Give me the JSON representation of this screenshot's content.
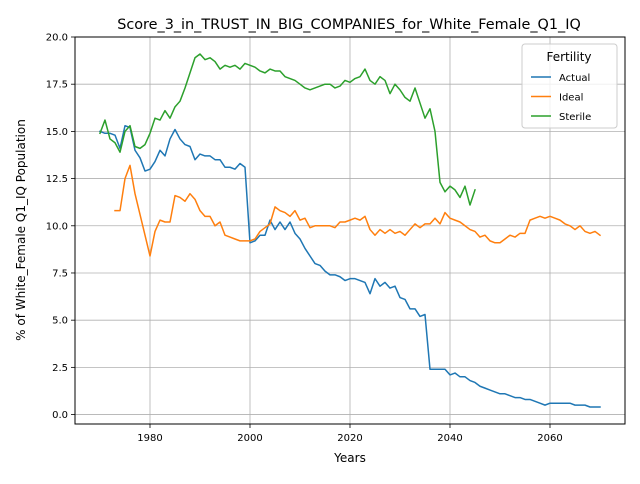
{
  "chart_data": {
    "type": "line",
    "title": "Score_3_in_TRUST_IN_BIG_COMPANIES_for_White_Female_Q1_IQ",
    "xlabel": "Years",
    "ylabel": "% of White_Female Q1_IQ Population",
    "xlim": [
      1965,
      2075
    ],
    "ylim": [
      -0.5,
      20.0
    ],
    "x_ticks": [
      1980,
      2000,
      2020,
      2040,
      2060
    ],
    "y_ticks": [
      0.0,
      2.5,
      5.0,
      7.5,
      10.0,
      12.5,
      15.0,
      17.5,
      20.0
    ],
    "x_tick_labels": [
      "1980",
      "2000",
      "2020",
      "2040",
      "2060"
    ],
    "y_tick_labels": [
      "0.0",
      "2.5",
      "5.0",
      "7.5",
      "10.0",
      "12.5",
      "15.0",
      "17.5",
      "20.0"
    ],
    "grid": true,
    "legend": {
      "title": "Fertility",
      "position": "top-right"
    },
    "series": [
      {
        "name": "Actual",
        "color": "#1f77b4",
        "x": [
          1970,
          1971,
          1972,
          1973,
          1974,
          1975,
          1976,
          1977,
          1978,
          1979,
          1980,
          1981,
          1982,
          1983,
          1984,
          1985,
          1986,
          1987,
          1988,
          1989,
          1990,
          1991,
          1992,
          1993,
          1994,
          1995,
          1996,
          1997,
          1998,
          1999,
          2000,
          2001,
          2002,
          2003,
          2004,
          2005,
          2006,
          2007,
          2008,
          2009,
          2010,
          2011,
          2012,
          2013,
          2014,
          2015,
          2016,
          2017,
          2018,
          2019,
          2020,
          2021,
          2022,
          2023,
          2024,
          2025,
          2026,
          2027,
          2028,
          2029,
          2030,
          2031,
          2032,
          2033,
          2034,
          2035,
          2036,
          2037,
          2038,
          2039,
          2040,
          2041,
          2042,
          2043,
          2044,
          2045,
          2046,
          2047,
          2048,
          2049,
          2050,
          2051,
          2052,
          2053,
          2054,
          2055,
          2056,
          2057,
          2058,
          2059,
          2060,
          2061,
          2062,
          2063,
          2064,
          2065,
          2066,
          2067,
          2068,
          2069,
          2070
        ],
        "values": [
          15.0,
          14.9,
          14.9,
          14.8,
          14.1,
          15.3,
          15.2,
          14.0,
          13.6,
          12.9,
          13.0,
          13.4,
          14.0,
          13.7,
          14.6,
          15.1,
          14.6,
          14.3,
          14.2,
          13.5,
          13.8,
          13.7,
          13.7,
          13.5,
          13.5,
          13.1,
          13.1,
          13.0,
          13.3,
          13.1,
          9.1,
          9.2,
          9.5,
          9.5,
          10.3,
          9.8,
          10.2,
          9.8,
          10.2,
          9.6,
          9.3,
          8.8,
          8.4,
          8.0,
          7.9,
          7.6,
          7.4,
          7.4,
          7.3,
          7.1,
          7.2,
          7.2,
          7.1,
          7.0,
          6.4,
          7.2,
          6.8,
          7.0,
          6.7,
          6.8,
          6.2,
          6.1,
          5.6,
          5.6,
          5.2,
          5.3,
          2.4,
          2.4,
          2.4,
          2.4,
          2.1,
          2.2,
          2.0,
          2.0,
          1.8,
          1.7,
          1.5,
          1.4,
          1.3,
          1.2,
          1.1,
          1.1,
          1.0,
          0.9,
          0.9,
          0.8,
          0.8,
          0.7,
          0.6,
          0.5,
          0.6,
          0.6,
          0.6,
          0.6,
          0.6,
          0.5,
          0.5,
          0.5,
          0.4,
          0.4,
          0.4
        ]
      },
      {
        "name": "Ideal",
        "color": "#ff7f0e",
        "x": [
          1973,
          1974,
          1975,
          1976,
          1977,
          1978,
          1979,
          1980,
          1981,
          1982,
          1983,
          1984,
          1985,
          1986,
          1987,
          1988,
          1989,
          1990,
          1991,
          1992,
          1993,
          1994,
          1995,
          1996,
          1997,
          1998,
          1999,
          2000,
          2001,
          2002,
          2003,
          2004,
          2005,
          2006,
          2007,
          2008,
          2009,
          2010,
          2011,
          2012,
          2013,
          2014,
          2015,
          2016,
          2017,
          2018,
          2019,
          2020,
          2021,
          2022,
          2023,
          2024,
          2025,
          2026,
          2027,
          2028,
          2029,
          2030,
          2031,
          2032,
          2033,
          2034,
          2035,
          2036,
          2037,
          2038,
          2039,
          2040,
          2041,
          2042,
          2043,
          2044,
          2045,
          2046,
          2047,
          2048,
          2049,
          2050,
          2051,
          2052,
          2053,
          2054,
          2055,
          2056,
          2057,
          2058,
          2059,
          2060,
          2061,
          2062,
          2063,
          2064,
          2065,
          2066,
          2067,
          2068,
          2069,
          2070
        ],
        "values": [
          10.8,
          10.8,
          12.5,
          13.2,
          11.7,
          10.6,
          9.5,
          8.4,
          9.7,
          10.3,
          10.2,
          10.2,
          11.6,
          11.5,
          11.3,
          11.7,
          11.4,
          10.8,
          10.5,
          10.5,
          10.0,
          10.2,
          9.5,
          9.4,
          9.3,
          9.2,
          9.2,
          9.2,
          9.3,
          9.7,
          9.9,
          10.1,
          11.0,
          10.8,
          10.7,
          10.5,
          10.8,
          10.3,
          10.4,
          9.9,
          10.0,
          10.0,
          10.0,
          10.0,
          9.9,
          10.2,
          10.2,
          10.3,
          10.4,
          10.3,
          10.5,
          9.8,
          9.5,
          9.8,
          9.6,
          9.8,
          9.6,
          9.7,
          9.5,
          9.8,
          10.1,
          9.9,
          10.1,
          10.1,
          10.4,
          10.1,
          10.7,
          10.4,
          10.3,
          10.2,
          10.0,
          9.8,
          9.7,
          9.4,
          9.5,
          9.2,
          9.1,
          9.1,
          9.3,
          9.5,
          9.4,
          9.6,
          9.6,
          10.3,
          10.4,
          10.5,
          10.4,
          10.5,
          10.4,
          10.3,
          10.1,
          10.0,
          9.8,
          10.0,
          9.7,
          9.6,
          9.7,
          9.5
        ]
      },
      {
        "name": "Sterile",
        "color": "#2ca02c",
        "x": [
          1970,
          1971,
          1972,
          1973,
          1974,
          1975,
          1976,
          1977,
          1978,
          1979,
          1980,
          1981,
          1982,
          1983,
          1984,
          1985,
          1986,
          1987,
          1988,
          1989,
          1990,
          1991,
          1992,
          1993,
          1994,
          1995,
          1996,
          1997,
          1998,
          1999,
          2000,
          2001,
          2002,
          2003,
          2004,
          2005,
          2006,
          2007,
          2008,
          2009,
          2010,
          2011,
          2012,
          2013,
          2014,
          2015,
          2016,
          2017,
          2018,
          2019,
          2020,
          2021,
          2022,
          2023,
          2024,
          2025,
          2026,
          2027,
          2028,
          2029,
          2030,
          2031,
          2032,
          2033,
          2034,
          2035,
          2036,
          2037,
          2038,
          2039,
          2040,
          2041,
          2042,
          2043,
          2044,
          2045
        ],
        "values": [
          14.9,
          15.6,
          14.6,
          14.4,
          13.9,
          15.0,
          15.3,
          14.2,
          14.1,
          14.3,
          14.9,
          15.7,
          15.6,
          16.1,
          15.7,
          16.3,
          16.6,
          17.3,
          18.1,
          18.9,
          19.1,
          18.8,
          18.9,
          18.7,
          18.3,
          18.5,
          18.4,
          18.5,
          18.3,
          18.6,
          18.5,
          18.4,
          18.2,
          18.1,
          18.3,
          18.2,
          18.2,
          17.9,
          17.8,
          17.7,
          17.5,
          17.3,
          17.2,
          17.3,
          17.4,
          17.5,
          17.5,
          17.3,
          17.4,
          17.7,
          17.6,
          17.8,
          17.9,
          18.3,
          17.7,
          17.5,
          17.9,
          17.7,
          17.0,
          17.5,
          17.2,
          16.8,
          16.6,
          17.3,
          16.5,
          15.7,
          16.2,
          15.0,
          12.3,
          11.8,
          12.1,
          11.9,
          11.5,
          12.1,
          11.1,
          11.9
        ]
      }
    ]
  }
}
